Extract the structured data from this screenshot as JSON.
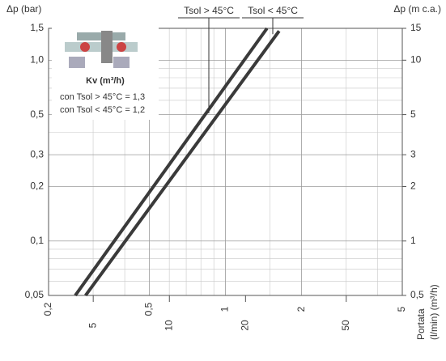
{
  "chart_data": {
    "type": "line",
    "log_x": true,
    "log_y": true,
    "grid": true,
    "y_label": "Δp (bar)",
    "y2_label": "Δp (m c.a.)",
    "x_label": "Portata",
    "x_units": "(l/min) (m³/h)",
    "xlim": [
      0.2,
      5
    ],
    "xticks": [
      {
        "value": 0.2,
        "label": "0,2"
      },
      {
        "value": 0.5,
        "label": "0,5"
      },
      1,
      2,
      5
    ],
    "x2lim": [
      3.33,
      83.3
    ],
    "x2ticks": [
      5,
      10,
      20,
      50
    ],
    "ylim": [
      0.05,
      1.5
    ],
    "yticks": [
      {
        "value": 0.05,
        "label": "0,05"
      },
      {
        "value": 0.1,
        "label": "0,1"
      },
      {
        "value": 0.2,
        "label": "0,2"
      },
      {
        "value": 0.3,
        "label": "0,3"
      },
      {
        "value": 0.5,
        "label": "0,5"
      },
      {
        "value": 1,
        "label": "1,0"
      },
      {
        "value": 1.5,
        "label": "1,5"
      }
    ],
    "y2lim": [
      0.5,
      15
    ],
    "y2ticks": [
      {
        "value": 0.5,
        "label": "0,5"
      },
      1,
      2,
      3,
      5,
      10,
      15
    ],
    "x_minor_grid": [
      0.3,
      0.4,
      0.6,
      0.7,
      0.8,
      0.9,
      1.5,
      3,
      4
    ],
    "y_minor_grid": [
      0.06,
      0.07,
      0.08,
      0.09,
      0.4,
      0.6,
      0.7,
      0.8,
      0.9
    ],
    "legend_title": "Kv (m³/h)",
    "legend_lines": [
      "con Tsol > 45°C = 1,3",
      "con Tsol < 45°C = 1,2"
    ],
    "series": [
      {
        "name": "Tsol > 45°C",
        "color": "#3a3a3a",
        "x": [
          0.255,
          1.46
        ],
        "values": [
          0.05,
          1.5
        ]
      },
      {
        "name": "Tsol < 45°C",
        "color": "#3a3a3a",
        "x": [
          0.28,
          1.63
        ],
        "values": [
          0.05,
          1.45
        ]
      }
    ]
  }
}
